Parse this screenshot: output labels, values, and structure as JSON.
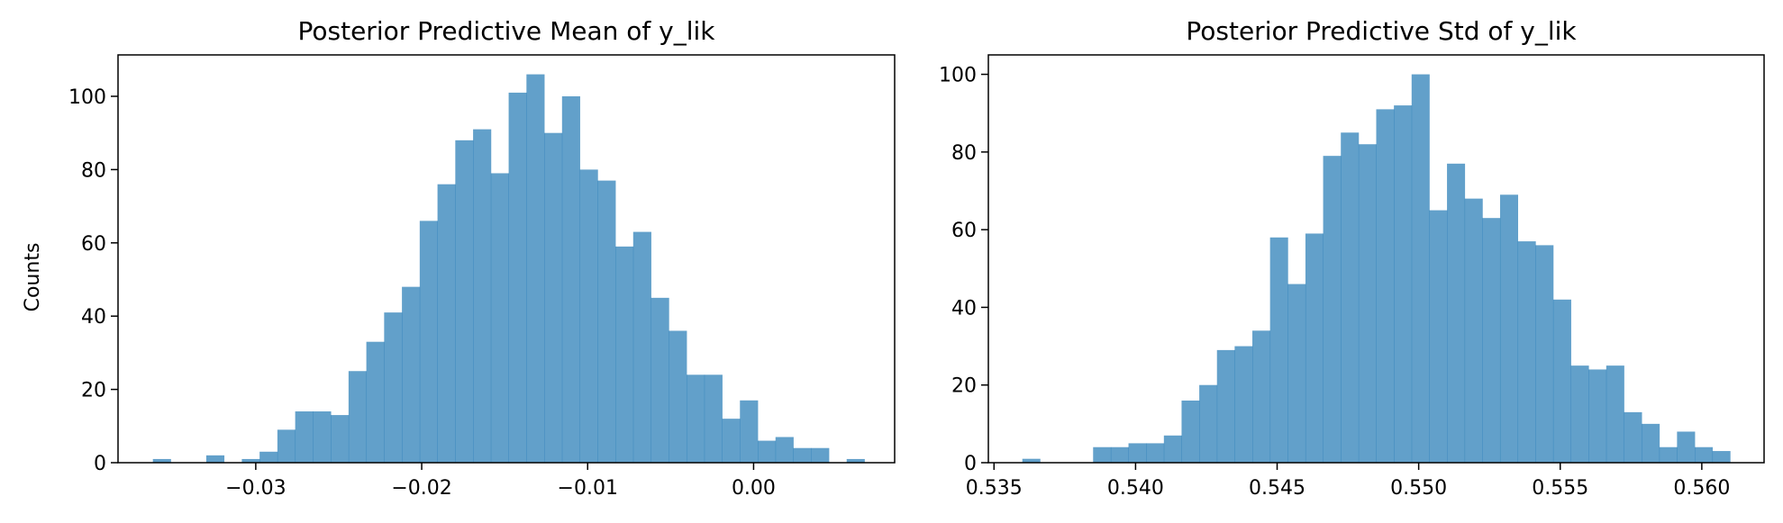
{
  "chart_data": [
    {
      "type": "histogram",
      "title": "Posterior Predictive Mean of y_lik",
      "ylabel": "Counts",
      "xlabel": "",
      "xlim": [
        -0.0383,
        0.0085
      ],
      "ylim": [
        0,
        111.3
      ],
      "color": "#1f77b4",
      "bar_alpha": 0.7,
      "xticks": [
        {
          "value": -0.03,
          "label": "−0.03"
        },
        {
          "value": -0.02,
          "label": "−0.02"
        },
        {
          "value": -0.01,
          "label": "−0.01"
        },
        {
          "value": 0.0,
          "label": "0.00"
        }
      ],
      "yticks": [
        {
          "value": 0,
          "label": "0"
        },
        {
          "value": 20,
          "label": "20"
        },
        {
          "value": 40,
          "label": "40"
        },
        {
          "value": 60,
          "label": "60"
        },
        {
          "value": 80,
          "label": "80"
        },
        {
          "value": 100,
          "label": "100"
        }
      ],
      "bin_start": -0.0362,
      "bin_width": 0.001072,
      "counts": [
        1,
        0,
        0,
        2,
        0,
        1,
        3,
        9,
        14,
        14,
        13,
        25,
        33,
        41,
        48,
        66,
        76,
        88,
        91,
        79,
        101,
        106,
        90,
        100,
        80,
        77,
        59,
        63,
        45,
        36,
        24,
        24,
        12,
        17,
        6,
        7,
        4,
        4,
        0,
        1
      ]
    },
    {
      "type": "histogram",
      "title": "Posterior Predictive Std of y_lik",
      "ylabel": "",
      "xlabel": "",
      "xlim": [
        0.5348,
        0.5622
      ],
      "ylim": [
        0,
        105
      ],
      "color": "#1f77b4",
      "bar_alpha": 0.7,
      "xticks": [
        {
          "value": 0.535,
          "label": "0.535"
        },
        {
          "value": 0.54,
          "label": "0.540"
        },
        {
          "value": 0.545,
          "label": "0.545"
        },
        {
          "value": 0.55,
          "label": "0.550"
        },
        {
          "value": 0.555,
          "label": "0.555"
        },
        {
          "value": 0.56,
          "label": "0.560"
        }
      ],
      "yticks": [
        {
          "value": 0,
          "label": "0"
        },
        {
          "value": 20,
          "label": "20"
        },
        {
          "value": 40,
          "label": "40"
        },
        {
          "value": 60,
          "label": "60"
        },
        {
          "value": 80,
          "label": "80"
        },
        {
          "value": 100,
          "label": "100"
        }
      ],
      "bin_start": 0.536,
      "bin_width": 0.000625,
      "counts": [
        1,
        0,
        0,
        0,
        4,
        4,
        5,
        5,
        7,
        16,
        20,
        29,
        30,
        34,
        58,
        46,
        59,
        79,
        85,
        82,
        91,
        92,
        100,
        65,
        77,
        68,
        63,
        69,
        57,
        56,
        42,
        25,
        24,
        25,
        13,
        10,
        4,
        8,
        4,
        3
      ]
    }
  ]
}
